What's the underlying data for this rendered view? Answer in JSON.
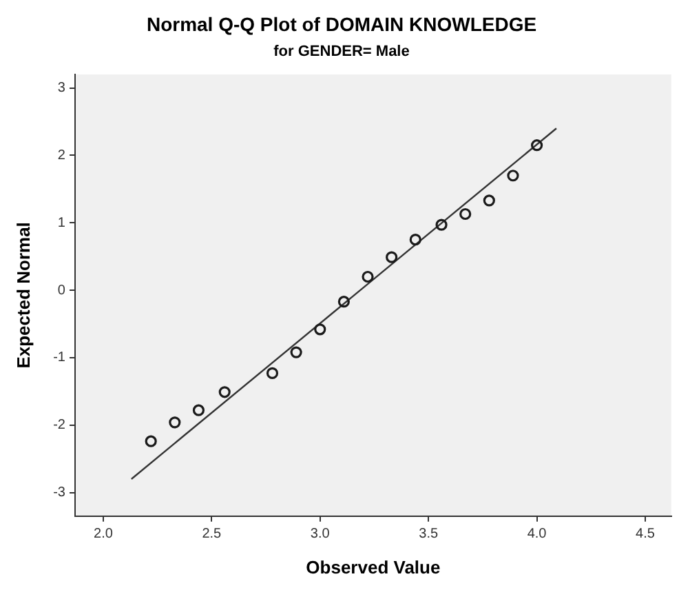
{
  "chart_data": {
    "type": "scatter",
    "title": "Normal Q-Q Plot of DOMAIN KNOWLEDGE",
    "subtitle": "for GENDER= Male",
    "xlabel": "Observed Value",
    "ylabel": "Expected Normal",
    "xlim": [
      1.87,
      4.62
    ],
    "ylim": [
      -3.35,
      3.2
    ],
    "xticks": [
      {
        "value": 2,
        "label": "2.0"
      },
      {
        "value": 2.5,
        "label": "2.5"
      },
      {
        "value": 3,
        "label": "3.0"
      },
      {
        "value": 3.5,
        "label": "3.5"
      },
      {
        "value": 4,
        "label": "4.0"
      },
      {
        "value": 4.5,
        "label": "4.5"
      }
    ],
    "yticks": [
      -3,
      -2,
      -1,
      0,
      1,
      2,
      3
    ],
    "grid": false,
    "legend": false,
    "marker": "circle",
    "series": [
      {
        "type": "scatter",
        "color": "#1a1a1a",
        "x": [
          2.22,
          2.33,
          2.44,
          2.56,
          2.78,
          2.89,
          3.0,
          3.11,
          3.22,
          3.33,
          3.44,
          3.56,
          3.67,
          3.78,
          3.89,
          4.0
        ],
        "values": [
          -2.24,
          -1.96,
          -1.78,
          -1.51,
          -1.23,
          -0.92,
          -0.58,
          -0.17,
          0.2,
          0.49,
          0.75,
          0.97,
          1.13,
          1.33,
          1.7,
          2.15
        ]
      },
      {
        "type": "line",
        "color": "#333333",
        "marker": "none",
        "line_style": "solid",
        "x": [
          2.13,
          4.09
        ],
        "values": [
          -2.8,
          2.4
        ]
      }
    ]
  }
}
